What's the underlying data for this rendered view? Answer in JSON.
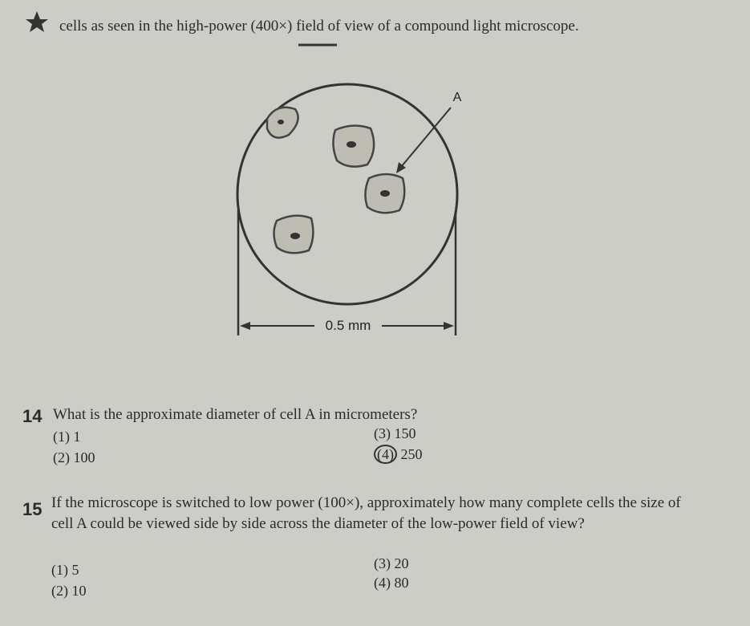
{
  "header": {
    "text": "cells as seen in the high-power (400×) field of view of a compound light microscope."
  },
  "diagram": {
    "cell_label": "A",
    "scale_label": "0.5 mm"
  },
  "questions": [
    {
      "number": "14",
      "text": "What is the approximate diameter of cell A in micrometers?",
      "options": [
        {
          "number": "(1)",
          "text": "1"
        },
        {
          "number": "(2)",
          "text": "100"
        },
        {
          "number": "(3)",
          "text": "150"
        },
        {
          "number": "(4)",
          "text": "250"
        }
      ]
    },
    {
      "number": "15",
      "text": "If the microscope is switched to low power (100×), approximately how many complete cells the size of cell A could be viewed side by side across the diameter of the low-power field of view?",
      "options": [
        {
          "number": "(1)",
          "text": "5"
        },
        {
          "number": "(2)",
          "text": "10"
        },
        {
          "number": "(3)",
          "text": "20"
        },
        {
          "number": "(4)",
          "text": "80"
        }
      ]
    }
  ]
}
